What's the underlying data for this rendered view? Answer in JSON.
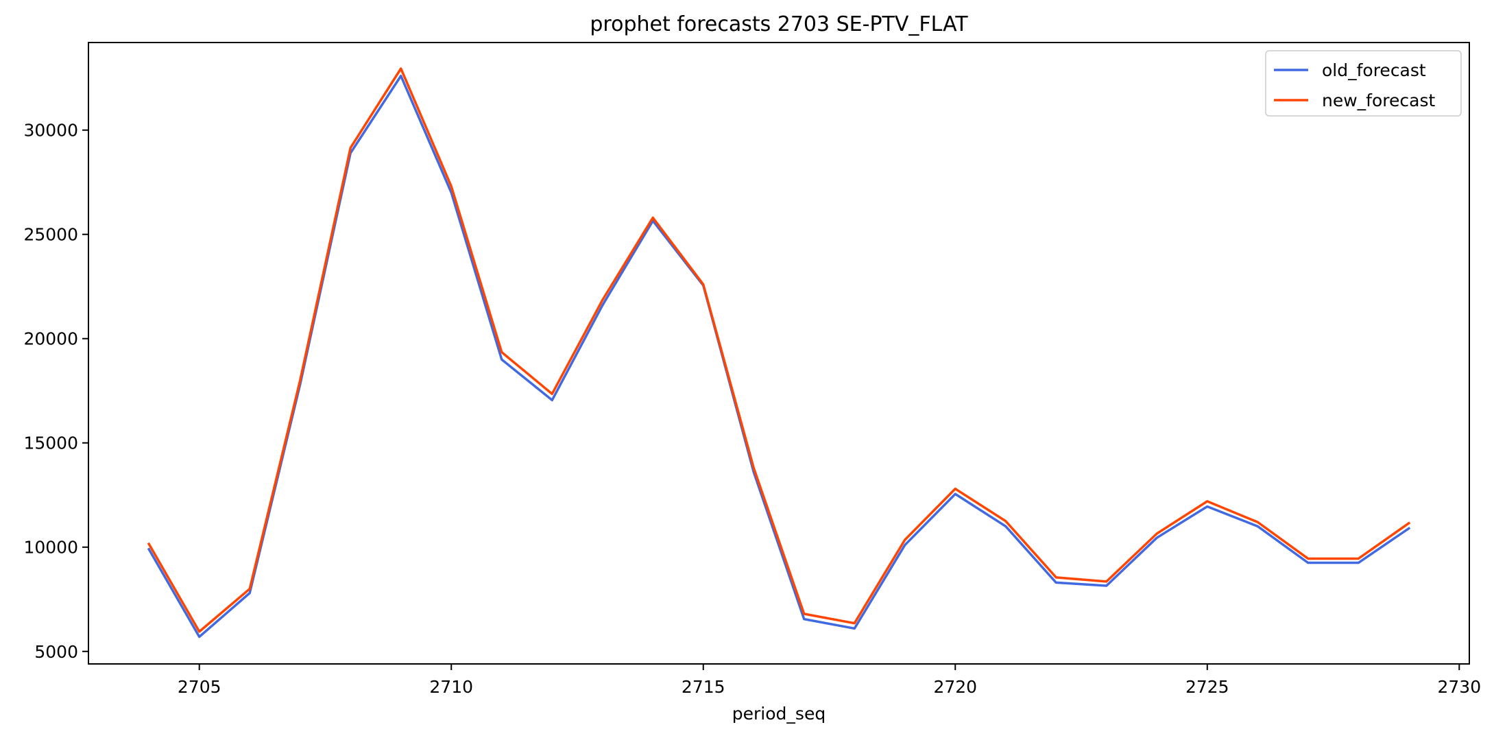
{
  "chart_data": {
    "type": "line",
    "title": "prophet forecasts 2703 SE-PTV_FLAT",
    "xlabel": "period_seq",
    "ylabel": "",
    "xlim": [
      2702.8,
      2730.2
    ],
    "ylim": [
      4400,
      34200
    ],
    "xticks": [
      2705,
      2710,
      2715,
      2720,
      2725,
      2730
    ],
    "yticks": [
      5000,
      10000,
      15000,
      20000,
      25000,
      30000
    ],
    "grid": false,
    "legend_position": "top-right",
    "x": [
      2704,
      2705,
      2706,
      2707,
      2708,
      2709,
      2710,
      2711,
      2712,
      2713,
      2714,
      2715,
      2716,
      2717,
      2718,
      2719,
      2720,
      2721,
      2722,
      2723,
      2724,
      2725,
      2726,
      2727,
      2728,
      2729
    ],
    "series": [
      {
        "name": "old_forecast",
        "color": "#4169e1",
        "values": [
          9900,
          5700,
          7800,
          17800,
          28900,
          32600,
          27000,
          19000,
          17050,
          21600,
          25650,
          22550,
          13600,
          6550,
          6100,
          10100,
          12550,
          11000,
          8300,
          8150,
          10450,
          11950,
          11000,
          9250,
          9250,
          10900
        ]
      },
      {
        "name": "new_forecast",
        "color": "#ff4500",
        "values": [
          10150,
          5950,
          8000,
          18000,
          29150,
          32950,
          27300,
          19350,
          17350,
          21850,
          25800,
          22600,
          13800,
          6800,
          6350,
          10350,
          12800,
          11250,
          8550,
          8350,
          10650,
          12200,
          11200,
          9450,
          9450,
          11150
        ]
      }
    ]
  }
}
